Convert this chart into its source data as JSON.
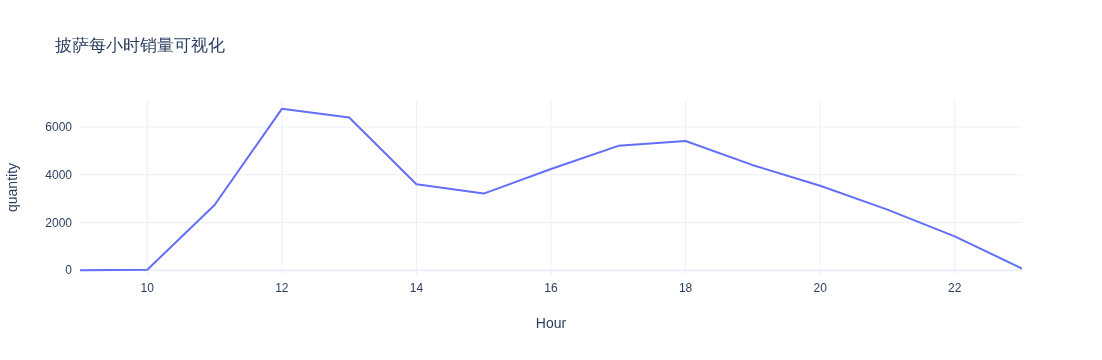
{
  "chart_data": {
    "type": "line",
    "title": "披萨每小时销量可视化",
    "xlabel": "Hour",
    "ylabel": "quantity",
    "x": [
      9,
      10,
      11,
      12,
      13,
      14,
      15,
      16,
      17,
      18,
      19,
      20,
      21,
      22,
      23
    ],
    "series": [
      {
        "color": "#636efa",
        "values": [
          0,
          20,
          2730,
          6760,
          6400,
          3600,
          3210,
          4240,
          5210,
          5410,
          4400,
          3540,
          2540,
          1420,
          70
        ]
      }
    ],
    "xlim": [
      9,
      23
    ],
    "xticks": [
      10,
      12,
      14,
      16,
      18,
      20,
      22
    ],
    "ylim": [
      -200,
      7130
    ],
    "yticks": [
      0,
      2000,
      4000,
      6000
    ],
    "grid": true,
    "legend": false,
    "marker": "none",
    "line_style": "solid"
  }
}
